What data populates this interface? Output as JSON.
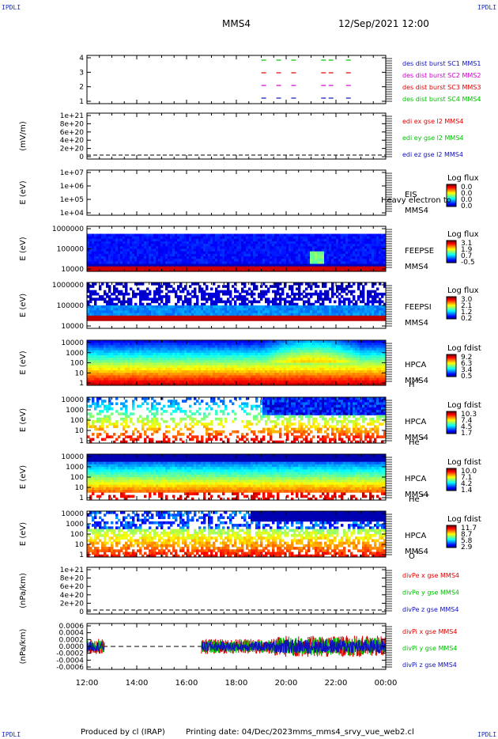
{
  "corners": [
    "IPDLI",
    "IPDLI",
    "IPDLI",
    "IPDLI"
  ],
  "header": {
    "spacecraft": "MMS4",
    "datetime": "12/Sep/2021 12:00"
  },
  "footer": {
    "producer": "Produced by cl (IRAP)",
    "printed": "Printing date: 04/Dec/2023",
    "file": "mms_mms4_srvy_vue_web2.cl"
  },
  "colors": {
    "sc1": "#1010c0",
    "sc2": "#d000d0",
    "sc3": "#e00000",
    "sc4": "#00c000",
    "x": "#e00000",
    "y": "#00c000",
    "z": "#1010c0"
  },
  "chart_data": {
    "type": "multi-panel time series",
    "x_ticks": [
      "12:00",
      "14:00",
      "16:00",
      "18:00",
      "20:00",
      "22:00",
      "00:00"
    ],
    "x_range_hours": [
      12,
      24
    ],
    "panels": [
      {
        "id": "burst",
        "type": "timeline",
        "ylabel": "",
        "yticks": [
          "4",
          "3",
          "2",
          "1"
        ],
        "legend": [
          {
            "text": "des dist burst SC1 MMS1",
            "color": "sc1"
          },
          {
            "text": "des dist burst SC2 MMS2",
            "color": "sc2"
          },
          {
            "text": "des dist burst SC3 MMS3",
            "color": "sc3"
          },
          {
            "text": "des dist burst SC4 MMS4",
            "color": "sc4"
          }
        ],
        "burst_times_hours": [
          19.1,
          19.7,
          20.3,
          21.5,
          21.8,
          22.5
        ]
      },
      {
        "id": "edi",
        "type": "line",
        "ylabel": "(mV/m)",
        "yticks": [
          "1e+21",
          "8e+20",
          "6e+20",
          "4e+20",
          "2e+20",
          "0"
        ],
        "legend": [
          {
            "text": "edi ex gse l2 MMS4",
            "color": "x"
          },
          {
            "text": "edi ey gse l2 MMS4",
            "color": "y"
          },
          {
            "text": "edi ez gse l2 MMS4",
            "color": "z"
          }
        ]
      },
      {
        "id": "eis",
        "type": "heatmap",
        "ylabel": "E (eV)",
        "yticks": [
          "1e+07",
          "1e+06",
          "1e+05",
          "1e+04"
        ],
        "labels": [
          "EIS",
          "MMS4"
        ],
        "overlay": "Heavy electron to",
        "colorbar_title": "Log flux",
        "colorbar_ticks": [
          "0.0",
          "0.0",
          "0.0",
          "0.0"
        ]
      },
      {
        "id": "feepse",
        "type": "heatmap",
        "ylabel": "E (eV)",
        "yticks": [
          "1000000",
          "100000",
          "10000"
        ],
        "labels": [
          "FEEPSE",
          "MMS4"
        ],
        "colorbar_title": "Log flux",
        "colorbar_ticks": [
          "3.1",
          "1.9",
          "0.7",
          "-0.5"
        ]
      },
      {
        "id": "feepsi",
        "type": "heatmap",
        "ylabel": "E (eV)",
        "yticks": [
          "1000000",
          "100000",
          "10000"
        ],
        "labels": [
          "FEEPSI",
          "MMS4"
        ],
        "colorbar_title": "Log flux",
        "colorbar_ticks": [
          "3.0",
          "2.1",
          "1.2",
          "0.2"
        ]
      },
      {
        "id": "hpca_h",
        "type": "heatmap",
        "ylabel": "E (eV)",
        "yticks": [
          "10000",
          "1000",
          "100",
          "10",
          "1"
        ],
        "labels": [
          "HPCA",
          "MMS4"
        ],
        "species": "H",
        "charge": "+",
        "colorbar_title": "Log fdist",
        "colorbar_ticks": [
          "9.2",
          "6.3",
          "3.4",
          "0.5"
        ]
      },
      {
        "id": "hpca_he1",
        "type": "heatmap",
        "ylabel": "E (eV)",
        "yticks": [
          "10000",
          "1000",
          "100",
          "10",
          "1"
        ],
        "labels": [
          "HPCA",
          "MMS4"
        ],
        "species": "He",
        "charge": "+",
        "colorbar_title": "Log fdist",
        "colorbar_ticks": [
          "10.3",
          "7.4",
          "4.5",
          "1.7"
        ]
      },
      {
        "id": "hpca_he2",
        "type": "heatmap",
        "ylabel": "E (eV)",
        "yticks": [
          "10000",
          "1000",
          "100",
          "10",
          "1"
        ],
        "labels": [
          "HPCA",
          "MMS4"
        ],
        "species": "He",
        "charge": "++",
        "colorbar_title": "Log fdist",
        "colorbar_ticks": [
          "10.0",
          "7.1",
          "4.2",
          "1.4"
        ]
      },
      {
        "id": "hpca_o",
        "type": "heatmap",
        "ylabel": "E (eV)",
        "yticks": [
          "10000",
          "1000",
          "100",
          "10",
          "1"
        ],
        "labels": [
          "HPCA",
          "MMS4"
        ],
        "species": "O",
        "charge": "+",
        "colorbar_title": "Log fdist",
        "colorbar_ticks": [
          "11.7",
          "8.7",
          "5.8",
          "2.9"
        ]
      },
      {
        "id": "divpe",
        "type": "line",
        "ylabel": "(nPa/km)",
        "yticks": [
          "1e+21",
          "8e+20",
          "6e+20",
          "4e+20",
          "2e+20",
          "0"
        ],
        "legend": [
          {
            "text": "divPe x gse MMS4",
            "color": "x"
          },
          {
            "text": "divPe y gse MMS4",
            "color": "y"
          },
          {
            "text": "divPe z gse MMS4",
            "color": "z"
          }
        ]
      },
      {
        "id": "divpi",
        "type": "line",
        "ylabel": "(nPa/km)",
        "yticks": [
          "0.0006",
          "0.0004",
          "0.0002",
          "0.0000",
          "-0.0002",
          "-0.0004",
          "-0.0006"
        ],
        "ylim": [
          -0.0006,
          0.0006
        ],
        "data_intervals_hours": [
          [
            12.0,
            12.7
          ],
          [
            16.6,
            24.0
          ]
        ],
        "typical_amplitude": 0.0002,
        "legend": [
          {
            "text": "divPi x gse MMS4",
            "color": "x"
          },
          {
            "text": "divPi y gse MMS4",
            "color": "y"
          },
          {
            "text": "divPi z gse MMS4",
            "color": "z"
          }
        ]
      }
    ]
  }
}
